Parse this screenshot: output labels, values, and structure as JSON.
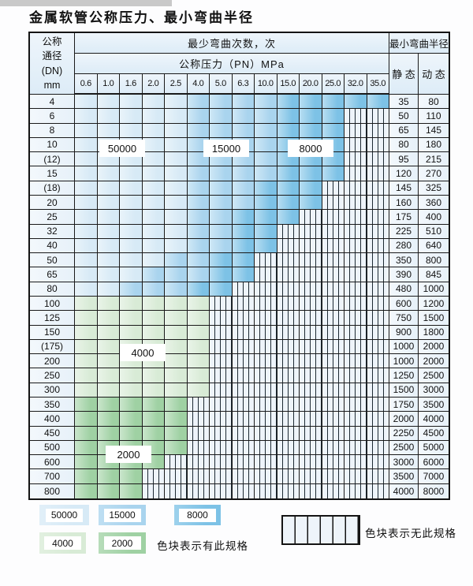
{
  "title": "金属软管公称压力、最小弯曲半径",
  "palette": {
    "b1": "#d7eaf6",
    "b2": "#a9d4ee",
    "b3": "#7dc2e6",
    "g1": "#d8ebd6",
    "g2": "#9fd1a3",
    "no_spec_bg": "#eef4fa",
    "grid_line": "#1a1a1a"
  },
  "table": {
    "header": {
      "dn_label_lines": [
        "公称",
        "通径",
        "(DN)",
        "mm"
      ],
      "cycles_label": "最少弯曲次数，次",
      "pressure_label": "公称压力（PN）MPa",
      "pressure_columns": [
        "0.6",
        "1.0",
        "1.6",
        "2.0",
        "2.5",
        "4.0",
        "5.0",
        "6.3",
        "10.0",
        "15.0",
        "20.0",
        "25.0",
        "32.0",
        "35.0"
      ],
      "radius_label": "最小弯曲半径",
      "static_label": "静 态",
      "dynamic_label": "动 态"
    },
    "rows": [
      {
        "dn": "4",
        "cells": [
          "b1",
          "b1",
          "b1",
          "b1",
          "b1",
          "b2",
          "b2",
          "b2",
          "b2",
          "b3",
          "b3",
          "b3",
          "b3",
          "b3"
        ],
        "static": "35",
        "dynamic": "80"
      },
      {
        "dn": "6",
        "cells": [
          "b1",
          "b1",
          "b1",
          "b1",
          "b1",
          "b2",
          "b2",
          "b2",
          "b2",
          "b3",
          "b3",
          "b3",
          "x",
          "x"
        ],
        "static": "50",
        "dynamic": "110"
      },
      {
        "dn": "8",
        "cells": [
          "b1",
          "b1",
          "b1",
          "b1",
          "b1",
          "b2",
          "b2",
          "b2",
          "b2",
          "b3",
          "b3",
          "b3",
          "x",
          "x"
        ],
        "static": "65",
        "dynamic": "145"
      },
      {
        "dn": "10",
        "cells": [
          "b1",
          "b1",
          "b1",
          "b1",
          "b1",
          "b2",
          "b2",
          "b2",
          "b2",
          "b3",
          "b3",
          "b3",
          "x",
          "x"
        ],
        "static": "80",
        "dynamic": "180"
      },
      {
        "dn": "(12)",
        "cells": [
          "b1",
          "b1",
          "b1",
          "b1",
          "b1",
          "b2",
          "b2",
          "b2",
          "b2",
          "b3",
          "b3",
          "b3",
          "x",
          "x"
        ],
        "static": "95",
        "dynamic": "215"
      },
      {
        "dn": "15",
        "cells": [
          "b1",
          "b1",
          "b1",
          "b1",
          "b1",
          "b2",
          "b2",
          "b2",
          "b2",
          "b3",
          "b3",
          "b3",
          "x",
          "x"
        ],
        "static": "120",
        "dynamic": "270"
      },
      {
        "dn": "(18)",
        "cells": [
          "b1",
          "b1",
          "b1",
          "b1",
          "b1",
          "b2",
          "b2",
          "b2",
          "b3",
          "b3",
          "b3",
          "x",
          "x",
          "x"
        ],
        "static": "145",
        "dynamic": "325"
      },
      {
        "dn": "20",
        "cells": [
          "b1",
          "b1",
          "b1",
          "b1",
          "b1",
          "b2",
          "b2",
          "b2",
          "b3",
          "b3",
          "b3",
          "x",
          "x",
          "x"
        ],
        "static": "160",
        "dynamic": "360"
      },
      {
        "dn": "25",
        "cells": [
          "b1",
          "b1",
          "b1",
          "b1",
          "b1",
          "b2",
          "b2",
          "b3",
          "b3",
          "b3",
          "x",
          "x",
          "x",
          "x"
        ],
        "static": "175",
        "dynamic": "400"
      },
      {
        "dn": "32",
        "cells": [
          "b1",
          "b1",
          "b1",
          "b1",
          "b1",
          "b2",
          "b2",
          "b3",
          "b3",
          "x",
          "x",
          "x",
          "x",
          "x"
        ],
        "static": "225",
        "dynamic": "510"
      },
      {
        "dn": "40",
        "cells": [
          "b1",
          "b1",
          "b1",
          "b1",
          "b1",
          "b2",
          "b2",
          "b3",
          "b3",
          "x",
          "x",
          "x",
          "x",
          "x"
        ],
        "static": "280",
        "dynamic": "640"
      },
      {
        "dn": "50",
        "cells": [
          "b1",
          "b1",
          "b1",
          "b1",
          "b2",
          "b2",
          "b3",
          "b3",
          "x",
          "x",
          "x",
          "x",
          "x",
          "x"
        ],
        "static": "350",
        "dynamic": "800"
      },
      {
        "dn": "65",
        "cells": [
          "b1",
          "b1",
          "b1",
          "b2",
          "b2",
          "b2",
          "b3",
          "b3",
          "x",
          "x",
          "x",
          "x",
          "x",
          "x"
        ],
        "static": "390",
        "dynamic": "845"
      },
      {
        "dn": "80",
        "cells": [
          "b1",
          "b1",
          "b2",
          "b2",
          "b2",
          "b3",
          "b3",
          "x",
          "x",
          "x",
          "x",
          "x",
          "x",
          "x"
        ],
        "static": "480",
        "dynamic": "1000"
      },
      {
        "dn": "100",
        "cells": [
          "g1",
          "g1",
          "g1",
          "g1",
          "g1",
          "g1",
          "x",
          "x",
          "x",
          "x",
          "x",
          "x",
          "x",
          "x"
        ],
        "static": "600",
        "dynamic": "1200"
      },
      {
        "dn": "125",
        "cells": [
          "g1",
          "g1",
          "g1",
          "g1",
          "g1",
          "g1",
          "x",
          "x",
          "x",
          "x",
          "x",
          "x",
          "x",
          "x"
        ],
        "static": "750",
        "dynamic": "1500"
      },
      {
        "dn": "150",
        "cells": [
          "g1",
          "g1",
          "g1",
          "g1",
          "g1",
          "g1",
          "x",
          "x",
          "x",
          "x",
          "x",
          "x",
          "x",
          "x"
        ],
        "static": "900",
        "dynamic": "1800"
      },
      {
        "dn": "(175)",
        "cells": [
          "g1",
          "g1",
          "g1",
          "g1",
          "g1",
          "g1",
          "x",
          "x",
          "x",
          "x",
          "x",
          "x",
          "x",
          "x"
        ],
        "static": "1000",
        "dynamic": "2000"
      },
      {
        "dn": "200",
        "cells": [
          "g1",
          "g1",
          "g1",
          "g1",
          "g1",
          "g1",
          "x",
          "x",
          "x",
          "x",
          "x",
          "x",
          "x",
          "x"
        ],
        "static": "1000",
        "dynamic": "2000"
      },
      {
        "dn": "250",
        "cells": [
          "g1",
          "g1",
          "g1",
          "g1",
          "g1",
          "g1",
          "x",
          "x",
          "x",
          "x",
          "x",
          "x",
          "x",
          "x"
        ],
        "static": "1250",
        "dynamic": "2500"
      },
      {
        "dn": "300",
        "cells": [
          "g1",
          "g1",
          "g1",
          "g1",
          "g1",
          "g1",
          "x",
          "x",
          "x",
          "x",
          "x",
          "x",
          "x",
          "x"
        ],
        "static": "1500",
        "dynamic": "3000"
      },
      {
        "dn": "350",
        "cells": [
          "g2",
          "g2",
          "g2",
          "g2",
          "g2",
          "x",
          "x",
          "x",
          "x",
          "x",
          "x",
          "x",
          "x",
          "x"
        ],
        "static": "1750",
        "dynamic": "3500"
      },
      {
        "dn": "400",
        "cells": [
          "g2",
          "g2",
          "g2",
          "g2",
          "g2",
          "x",
          "x",
          "x",
          "x",
          "x",
          "x",
          "x",
          "x",
          "x"
        ],
        "static": "2000",
        "dynamic": "4000"
      },
      {
        "dn": "450",
        "cells": [
          "g2",
          "g2",
          "g2",
          "g2",
          "g2",
          "x",
          "x",
          "x",
          "x",
          "x",
          "x",
          "x",
          "x",
          "x"
        ],
        "static": "2250",
        "dynamic": "4500"
      },
      {
        "dn": "500",
        "cells": [
          "g2",
          "g2",
          "g2",
          "g2",
          "g2",
          "x",
          "x",
          "x",
          "x",
          "x",
          "x",
          "x",
          "x",
          "x"
        ],
        "static": "2500",
        "dynamic": "5000"
      },
      {
        "dn": "600",
        "cells": [
          "g2",
          "g2",
          "g2",
          "g2",
          "x",
          "x",
          "x",
          "x",
          "x",
          "x",
          "x",
          "x",
          "x",
          "x"
        ],
        "static": "3000",
        "dynamic": "6000"
      },
      {
        "dn": "700",
        "cells": [
          "g2",
          "g2",
          "g2",
          "x",
          "x",
          "x",
          "x",
          "x",
          "x",
          "x",
          "x",
          "x",
          "x",
          "x"
        ],
        "static": "3500",
        "dynamic": "7000"
      },
      {
        "dn": "800",
        "cells": [
          "g2",
          "g2",
          "g2",
          "x",
          "x",
          "x",
          "x",
          "x",
          "x",
          "x",
          "x",
          "x",
          "x",
          "x"
        ],
        "static": "4000",
        "dynamic": "8000"
      }
    ]
  },
  "legend": {
    "items": [
      {
        "label": "50000",
        "shade": "b1"
      },
      {
        "label": "15000",
        "shade": "b2"
      },
      {
        "label": "8000",
        "shade": "b3"
      },
      {
        "label": "4000",
        "shade": "g1"
      },
      {
        "label": "2000",
        "shade": "g2"
      }
    ],
    "has_spec_text": "色块表示有此规格",
    "no_spec_text": "色块表示无此规格"
  }
}
